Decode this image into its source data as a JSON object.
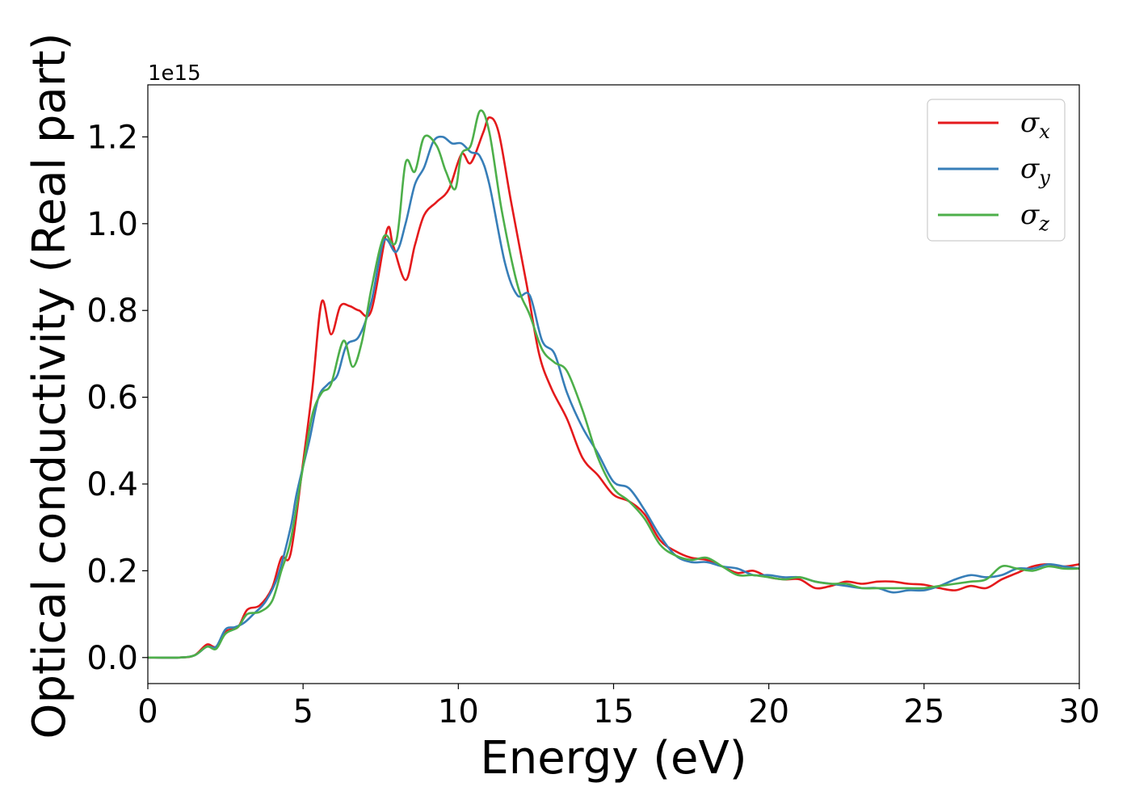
{
  "chart_data": {
    "type": "line",
    "xlabel": "Energy (eV)",
    "ylabel": "Optical conductivity (Real part)",
    "y_offset_text": "1e15",
    "xlim": [
      0,
      30
    ],
    "ylim": [
      -0.06,
      1.32
    ],
    "x_ticks": [
      0,
      5,
      10,
      15,
      20,
      25,
      30
    ],
    "x_tick_labels": [
      "0",
      "5",
      "10",
      "15",
      "20",
      "25",
      "30"
    ],
    "y_ticks": [
      0.0,
      0.2,
      0.4,
      0.6,
      0.8,
      1.0,
      1.2
    ],
    "y_tick_labels": [
      "0.0",
      "0.2",
      "0.4",
      "0.6",
      "0.8",
      "1.0",
      "1.2"
    ],
    "grid": false,
    "legend_position": "top-right",
    "series": [
      {
        "name": "σ",
        "subscript": "x",
        "color": "#e41a1c",
        "points": [
          [
            0,
            0
          ],
          [
            1,
            0
          ],
          [
            1.5,
            0.005
          ],
          [
            1.9,
            0.03
          ],
          [
            2.2,
            0.025
          ],
          [
            2.5,
            0.06
          ],
          [
            2.9,
            0.07
          ],
          [
            3.2,
            0.11
          ],
          [
            3.6,
            0.12
          ],
          [
            4.0,
            0.16
          ],
          [
            4.3,
            0.23
          ],
          [
            4.6,
            0.24
          ],
          [
            5.0,
            0.45
          ],
          [
            5.3,
            0.62
          ],
          [
            5.6,
            0.82
          ],
          [
            5.9,
            0.745
          ],
          [
            6.2,
            0.81
          ],
          [
            6.5,
            0.81
          ],
          [
            6.8,
            0.8
          ],
          [
            7.2,
            0.8
          ],
          [
            7.7,
            0.985
          ],
          [
            7.9,
            0.95
          ],
          [
            8.3,
            0.87
          ],
          [
            8.6,
            0.95
          ],
          [
            8.9,
            1.02
          ],
          [
            9.3,
            1.05
          ],
          [
            9.7,
            1.08
          ],
          [
            10.1,
            1.16
          ],
          [
            10.4,
            1.14
          ],
          [
            10.8,
            1.21
          ],
          [
            11.0,
            1.245
          ],
          [
            11.3,
            1.21
          ],
          [
            11.7,
            1.05
          ],
          [
            12.2,
            0.86
          ],
          [
            12.6,
            0.7
          ],
          [
            13.0,
            0.62
          ],
          [
            13.5,
            0.55
          ],
          [
            14.0,
            0.46
          ],
          [
            14.5,
            0.42
          ],
          [
            15.0,
            0.375
          ],
          [
            15.5,
            0.36
          ],
          [
            16.0,
            0.33
          ],
          [
            16.5,
            0.27
          ],
          [
            17.0,
            0.245
          ],
          [
            17.5,
            0.23
          ],
          [
            18.0,
            0.225
          ],
          [
            18.5,
            0.21
          ],
          [
            19.0,
            0.195
          ],
          [
            19.5,
            0.2
          ],
          [
            20.0,
            0.185
          ],
          [
            20.5,
            0.18
          ],
          [
            21.0,
            0.18
          ],
          [
            21.5,
            0.16
          ],
          [
            22.0,
            0.165
          ],
          [
            22.5,
            0.175
          ],
          [
            23.0,
            0.17
          ],
          [
            23.5,
            0.175
          ],
          [
            24.0,
            0.175
          ],
          [
            24.5,
            0.17
          ],
          [
            25.0,
            0.168
          ],
          [
            25.5,
            0.16
          ],
          [
            26.0,
            0.155
          ],
          [
            26.5,
            0.165
          ],
          [
            27.0,
            0.16
          ],
          [
            27.5,
            0.18
          ],
          [
            28.0,
            0.195
          ],
          [
            28.5,
            0.21
          ],
          [
            29.0,
            0.215
          ],
          [
            29.5,
            0.21
          ],
          [
            30.0,
            0.215
          ]
        ]
      },
      {
        "name": "σ",
        "subscript": "y",
        "color": "#377eb8",
        "points": [
          [
            0,
            0
          ],
          [
            1,
            0
          ],
          [
            1.5,
            0.005
          ],
          [
            1.9,
            0.025
          ],
          [
            2.2,
            0.025
          ],
          [
            2.5,
            0.065
          ],
          [
            2.8,
            0.07
          ],
          [
            3.1,
            0.08
          ],
          [
            3.4,
            0.1
          ],
          [
            3.8,
            0.13
          ],
          [
            4.2,
            0.19
          ],
          [
            4.6,
            0.3
          ],
          [
            4.8,
            0.38
          ],
          [
            5.2,
            0.5
          ],
          [
            5.5,
            0.6
          ],
          [
            5.8,
            0.63
          ],
          [
            6.1,
            0.65
          ],
          [
            6.4,
            0.72
          ],
          [
            6.8,
            0.74
          ],
          [
            7.2,
            0.82
          ],
          [
            7.6,
            0.96
          ],
          [
            8.0,
            0.935
          ],
          [
            8.3,
            1.0
          ],
          [
            8.6,
            1.09
          ],
          [
            8.9,
            1.13
          ],
          [
            9.2,
            1.19
          ],
          [
            9.5,
            1.2
          ],
          [
            9.8,
            1.185
          ],
          [
            10.1,
            1.185
          ],
          [
            10.4,
            1.165
          ],
          [
            10.7,
            1.155
          ],
          [
            11.0,
            1.09
          ],
          [
            11.5,
            0.91
          ],
          [
            11.9,
            0.835
          ],
          [
            12.3,
            0.835
          ],
          [
            12.7,
            0.73
          ],
          [
            13.1,
            0.7
          ],
          [
            13.5,
            0.61
          ],
          [
            14.0,
            0.53
          ],
          [
            14.5,
            0.47
          ],
          [
            15.0,
            0.405
          ],
          [
            15.5,
            0.39
          ],
          [
            16.0,
            0.34
          ],
          [
            16.5,
            0.28
          ],
          [
            17.0,
            0.235
          ],
          [
            17.5,
            0.22
          ],
          [
            18.0,
            0.22
          ],
          [
            18.5,
            0.21
          ],
          [
            19.0,
            0.205
          ],
          [
            19.5,
            0.19
          ],
          [
            20.0,
            0.19
          ],
          [
            20.5,
            0.185
          ],
          [
            21.0,
            0.185
          ],
          [
            21.5,
            0.175
          ],
          [
            22.0,
            0.17
          ],
          [
            22.5,
            0.165
          ],
          [
            23.0,
            0.16
          ],
          [
            23.5,
            0.16
          ],
          [
            24.0,
            0.15
          ],
          [
            24.5,
            0.155
          ],
          [
            25.0,
            0.155
          ],
          [
            25.5,
            0.165
          ],
          [
            26.0,
            0.18
          ],
          [
            26.5,
            0.19
          ],
          [
            27.0,
            0.185
          ],
          [
            27.5,
            0.19
          ],
          [
            28.0,
            0.205
          ],
          [
            28.5,
            0.205
          ],
          [
            29.0,
            0.215
          ],
          [
            29.5,
            0.21
          ],
          [
            30.0,
            0.205
          ]
        ]
      },
      {
        "name": "σ",
        "subscript": "z",
        "color": "#4daf4a",
        "points": [
          [
            0,
            0
          ],
          [
            1,
            0
          ],
          [
            1.5,
            0.005
          ],
          [
            1.9,
            0.025
          ],
          [
            2.2,
            0.02
          ],
          [
            2.5,
            0.055
          ],
          [
            2.9,
            0.07
          ],
          [
            3.2,
            0.1
          ],
          [
            3.6,
            0.105
          ],
          [
            4.0,
            0.13
          ],
          [
            4.3,
            0.2
          ],
          [
            4.6,
            0.27
          ],
          [
            5.0,
            0.44
          ],
          [
            5.3,
            0.56
          ],
          [
            5.6,
            0.61
          ],
          [
            5.9,
            0.63
          ],
          [
            6.3,
            0.73
          ],
          [
            6.6,
            0.67
          ],
          [
            6.9,
            0.73
          ],
          [
            7.2,
            0.85
          ],
          [
            7.6,
            0.97
          ],
          [
            8.0,
            0.96
          ],
          [
            8.3,
            1.14
          ],
          [
            8.6,
            1.12
          ],
          [
            8.9,
            1.2
          ],
          [
            9.3,
            1.18
          ],
          [
            9.6,
            1.12
          ],
          [
            9.9,
            1.08
          ],
          [
            10.1,
            1.16
          ],
          [
            10.4,
            1.18
          ],
          [
            10.7,
            1.26
          ],
          [
            11.0,
            1.21
          ],
          [
            11.4,
            1.03
          ],
          [
            11.9,
            0.86
          ],
          [
            12.3,
            0.79
          ],
          [
            12.7,
            0.71
          ],
          [
            13.1,
            0.68
          ],
          [
            13.5,
            0.66
          ],
          [
            14.0,
            0.57
          ],
          [
            14.5,
            0.46
          ],
          [
            15.0,
            0.39
          ],
          [
            15.5,
            0.36
          ],
          [
            16.0,
            0.32
          ],
          [
            16.5,
            0.26
          ],
          [
            17.0,
            0.235
          ],
          [
            17.5,
            0.225
          ],
          [
            18.0,
            0.23
          ],
          [
            18.5,
            0.21
          ],
          [
            19.0,
            0.19
          ],
          [
            19.5,
            0.19
          ],
          [
            20.0,
            0.185
          ],
          [
            20.5,
            0.18
          ],
          [
            21.0,
            0.185
          ],
          [
            21.5,
            0.175
          ],
          [
            22.0,
            0.17
          ],
          [
            22.5,
            0.17
          ],
          [
            23.0,
            0.16
          ],
          [
            23.5,
            0.16
          ],
          [
            24.0,
            0.16
          ],
          [
            24.5,
            0.16
          ],
          [
            25.0,
            0.16
          ],
          [
            25.5,
            0.165
          ],
          [
            26.0,
            0.17
          ],
          [
            26.5,
            0.175
          ],
          [
            27.0,
            0.18
          ],
          [
            27.5,
            0.21
          ],
          [
            28.0,
            0.205
          ],
          [
            28.5,
            0.2
          ],
          [
            29.0,
            0.21
          ],
          [
            29.5,
            0.205
          ],
          [
            30.0,
            0.205
          ]
        ]
      }
    ]
  }
}
